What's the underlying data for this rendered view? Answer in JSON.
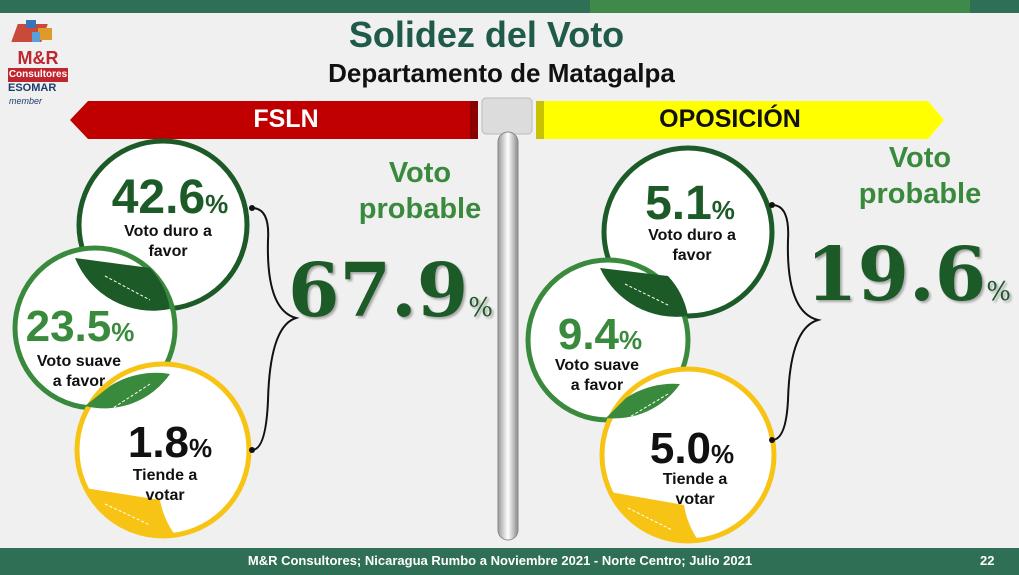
{
  "logo": {
    "brand": "M&R",
    "sub": "Consultores",
    "assoc": "ESOMAR",
    "member": "member"
  },
  "title": "Solidez del Voto",
  "subtitle": "Departamento de Matagalpa",
  "colors": {
    "dark_green": "#1c5a28",
    "mid_green": "#3a8a3e",
    "yellow": "#f7c416",
    "red": "#c00000",
    "banner_yellow": "#ffff00"
  },
  "left": {
    "banner": "FSLN",
    "vote_label_line1": "Voto",
    "vote_label_line2": "probable",
    "total": "67.9",
    "circles": [
      {
        "value": "42.6",
        "pct": "%",
        "label_line1": "Voto duro a",
        "label_line2": "favor"
      },
      {
        "value": "23.5",
        "pct": "%",
        "label_line1": "Voto suave",
        "label_line2": "a favor"
      },
      {
        "value": "1.8",
        "pct": "%",
        "label_line1": "Tiende a",
        "label_line2": "votar"
      }
    ]
  },
  "right": {
    "banner": "OPOSICIÓN",
    "vote_label_line1": "Voto",
    "vote_label_line2": "probable",
    "total": "19.6",
    "circles": [
      {
        "value": "5.1",
        "pct": "%",
        "label_line1": "Voto duro a",
        "label_line2": "favor"
      },
      {
        "value": "9.4",
        "pct": "%",
        "label_line1": "Voto suave",
        "label_line2": "a favor"
      },
      {
        "value": "5.0",
        "pct": "%",
        "label_line1": "Tiende a",
        "label_line2": "votar"
      }
    ]
  },
  "pct_symbol": "%",
  "footer": "M&R Consultores; Nicaragua Rumbo a Noviembre 2021 - Norte Centro; Julio 2021",
  "page_number": "22"
}
